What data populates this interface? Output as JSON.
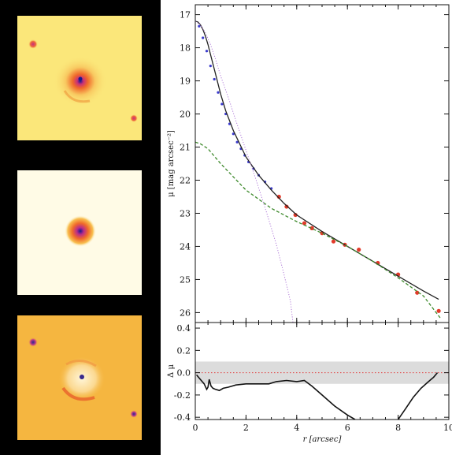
{
  "images": [
    {
      "name": "data",
      "background": "#fbe77a",
      "center_color": "#1a1a8c"
    },
    {
      "name": "model",
      "background": "#fffbe6",
      "center_color": "#1a1a8c"
    },
    {
      "name": "residual",
      "background": "#f5b640",
      "center_color": "#2a2a8c"
    }
  ],
  "chart_data": [
    {
      "type": "line",
      "title": "",
      "xlabel": "r [arcsec]",
      "ylabel": "μ [mag arcsec⁻²]",
      "xlim": [
        0,
        10
      ],
      "ylim": [
        26.3,
        16.7
      ],
      "y_inverted": true,
      "x_ticks": [
        "0",
        "2",
        "4",
        "6",
        "8",
        "10"
      ],
      "x_tick_values": [
        0,
        2,
        4,
        6,
        8,
        10
      ],
      "y_ticks": [
        "17",
        "18",
        "19",
        "20",
        "21",
        "22",
        "23",
        "24",
        "25",
        "26"
      ],
      "y_tick_values": [
        17,
        18,
        19,
        20,
        21,
        22,
        23,
        24,
        25,
        26
      ],
      "grid": false,
      "series": [
        {
          "style": "markers",
          "color": "#3a3acc",
          "x": [
            0.15,
            0.3,
            0.45,
            0.6,
            0.75,
            0.9,
            1.05,
            1.2,
            1.35,
            1.5,
            1.65,
            1.8,
            1.95,
            2.1,
            2.3,
            2.5,
            2.75,
            3.0
          ],
          "y": [
            17.35,
            17.7,
            18.1,
            18.55,
            18.95,
            19.35,
            19.7,
            20.0,
            20.3,
            20.6,
            20.85,
            21.05,
            21.25,
            21.45,
            21.65,
            21.85,
            22.05,
            22.25
          ]
        },
        {
          "style": "markers",
          "color": "#e23a2a",
          "x": [
            3.3,
            3.6,
            3.95,
            4.3,
            4.6,
            5.0,
            5.45,
            5.9,
            6.45,
            7.2,
            8.0,
            8.75,
            9.6
          ],
          "y": [
            22.5,
            22.8,
            23.05,
            23.3,
            23.45,
            23.6,
            23.85,
            23.95,
            24.1,
            24.5,
            24.85,
            25.4,
            25.95
          ]
        },
        {
          "style": "solid",
          "color": "#222222",
          "x": [
            0,
            0.1,
            0.2,
            0.3,
            0.4,
            0.5,
            0.6,
            0.8,
            1.0,
            1.2,
            1.5,
            2.0,
            2.5,
            3.0,
            3.5,
            4.0,
            5.0,
            6.0,
            7.0,
            8.0,
            9.0,
            9.6
          ],
          "y": [
            17.2,
            17.22,
            17.3,
            17.45,
            17.65,
            17.9,
            18.2,
            18.8,
            19.4,
            19.9,
            20.5,
            21.3,
            21.85,
            22.3,
            22.7,
            23.05,
            23.55,
            24.0,
            24.45,
            24.9,
            25.35,
            25.6
          ]
        },
        {
          "style": "dashed",
          "color": "#3e8a2c",
          "x": [
            0,
            0.2,
            0.5,
            1.0,
            1.5,
            2.0,
            3.0,
            4.0,
            5.0,
            6.0,
            7.0,
            8.0,
            9.0,
            9.7
          ],
          "y": [
            20.85,
            20.9,
            21.05,
            21.5,
            21.9,
            22.3,
            22.85,
            23.25,
            23.6,
            24.0,
            24.45,
            24.95,
            25.5,
            26.2
          ]
        },
        {
          "style": "dotted",
          "color": "#b07ad8",
          "x": [
            0,
            0.2,
            0.4,
            0.6,
            0.8,
            1.0,
            1.3,
            1.6,
            2.0,
            2.4,
            2.8,
            3.2,
            3.5,
            3.75,
            3.85
          ],
          "y": [
            17.2,
            17.3,
            17.55,
            17.9,
            18.35,
            18.85,
            19.5,
            20.2,
            21.1,
            22.0,
            22.95,
            23.95,
            24.85,
            25.65,
            26.3
          ]
        }
      ]
    },
    {
      "type": "line",
      "title": "",
      "xlabel": "r [arcsec]",
      "ylabel": "Δ μ",
      "xlim": [
        0,
        10
      ],
      "ylim": [
        -0.42,
        0.45
      ],
      "x_ticks": [
        "0",
        "2",
        "4",
        "6",
        "8",
        "10"
      ],
      "x_tick_values": [
        0,
        2,
        4,
        6,
        8,
        10
      ],
      "y_ticks": [
        "0.4",
        "0.2",
        "0.0",
        "-0.2",
        "-0.4"
      ],
      "y_tick_values": [
        0.4,
        0.2,
        0.0,
        -0.2,
        -0.4
      ],
      "shaded_band": [
        -0.1,
        0.1
      ],
      "shade_color": "#dcdcdc",
      "reference_line": {
        "y": 0.0,
        "color": "#e04040",
        "style": "dotted"
      },
      "series": [
        {
          "style": "solid",
          "color": "#111111",
          "segments": [
            {
              "x": [
                0.05,
                0.2,
                0.35,
                0.45,
                0.5,
                0.55,
                0.62,
                0.7,
                0.8,
                0.95,
                1.1,
                1.3,
                1.6,
                2.0,
                2.4,
                2.9,
                3.2,
                3.6,
                4.0,
                4.3,
                4.6,
                5.0,
                5.5,
                6.0,
                6.3
              ],
              "y": [
                -0.02,
                -0.06,
                -0.1,
                -0.15,
                -0.13,
                -0.06,
                -0.12,
                -0.14,
                -0.15,
                -0.16,
                -0.14,
                -0.13,
                -0.11,
                -0.1,
                -0.1,
                -0.1,
                -0.08,
                -0.07,
                -0.08,
                -0.07,
                -0.12,
                -0.2,
                -0.3,
                -0.38,
                -0.42
              ]
            },
            {
              "x": [
                8.0,
                8.3,
                8.6,
                8.9,
                9.2,
                9.4,
                9.55
              ],
              "y": [
                -0.42,
                -0.32,
                -0.22,
                -0.14,
                -0.08,
                -0.04,
                0.0
              ]
            }
          ]
        }
      ]
    }
  ]
}
